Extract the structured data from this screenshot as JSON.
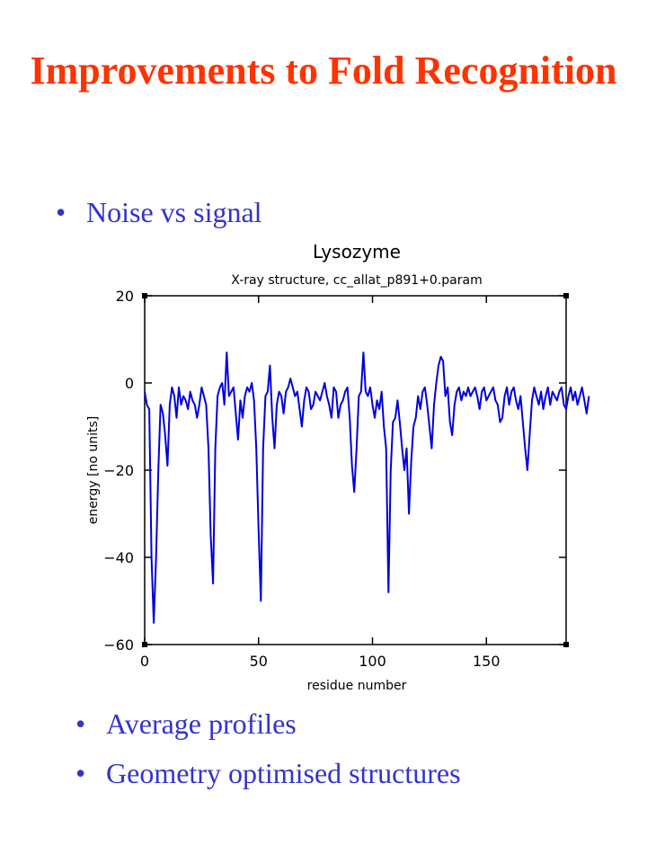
{
  "slide": {
    "title": "Improvements to Fold Recognition",
    "bullets": [
      "Noise vs signal",
      "Average profiles",
      "Geometry optimised structures"
    ],
    "title_color": "#ff3300",
    "bullet_color": "#3333cc",
    "bullet_glyph": "•"
  },
  "chart_data": {
    "type": "line",
    "title": "Lysozyme",
    "subtitle": "X-ray structure, cc_allat_p891+0.param",
    "xlabel": "residue number",
    "ylabel": "energy [no units]",
    "xlim": [
      0,
      185
    ],
    "ylim": [
      -60,
      20
    ],
    "xticks": [
      0,
      50,
      100,
      150
    ],
    "yticks": [
      20,
      0,
      -20,
      -40,
      -60
    ],
    "grid": false,
    "line_color": "#0000dd",
    "series": [
      {
        "x_start": 0,
        "x_step": 1,
        "values": [
          -2,
          -5,
          -6,
          -40,
          -55,
          -40,
          -20,
          -5,
          -7,
          -12,
          -19,
          -5,
          -1,
          -3,
          -8,
          -1,
          -5,
          -3,
          -4,
          -6,
          -2,
          -4,
          -5,
          -8,
          -5,
          -1,
          -3,
          -5,
          -15,
          -35,
          -46,
          -15,
          -3,
          -1,
          0,
          -5,
          7,
          -3,
          -2,
          -1,
          -7,
          -13,
          -4,
          -8,
          -3,
          -1,
          -2,
          0,
          -4,
          -15,
          -34,
          -50,
          -15,
          -3,
          -2,
          4,
          -8,
          -15,
          -5,
          -2,
          -3,
          -7,
          -2,
          -1,
          1,
          -1,
          -3,
          -2,
          -6,
          -10,
          -4,
          -1,
          -2,
          -6,
          -5,
          -2,
          -3,
          -4,
          -2,
          0,
          -3,
          -5,
          -8,
          -1,
          -2,
          -8,
          -5,
          -4,
          -2,
          -1,
          -8,
          -19,
          -25,
          -15,
          -3,
          -2,
          7,
          -2,
          -3,
          -1,
          -5,
          -8,
          -4,
          -6,
          -2,
          -10,
          -15,
          -48,
          -20,
          -9,
          -8,
          -4,
          -9,
          -15,
          -20,
          -15,
          -30,
          -18,
          -10,
          -8,
          -3,
          -6,
          -2,
          -1,
          -5,
          -10,
          -15,
          -5,
          0,
          4,
          6,
          5,
          -3,
          -1,
          -9,
          -12,
          -5,
          -2,
          -1,
          -4,
          -2,
          -3,
          -1,
          -3,
          -2,
          -1,
          -3,
          -6,
          -2,
          -1,
          -4,
          -3,
          -2,
          -1,
          -4,
          -5,
          -9,
          -8,
          -3,
          -1,
          -5,
          -2,
          -1,
          -4,
          -6,
          -3,
          -9,
          -15,
          -20,
          -12,
          -4,
          -1,
          -3,
          -5,
          -2,
          -6,
          -3,
          -1,
          -5,
          -2,
          -3,
          -4,
          -2,
          -1,
          -5,
          -6,
          -3,
          -1,
          -4,
          -2,
          -5,
          -3,
          -1,
          -4,
          -7,
          -3
        ]
      }
    ]
  }
}
